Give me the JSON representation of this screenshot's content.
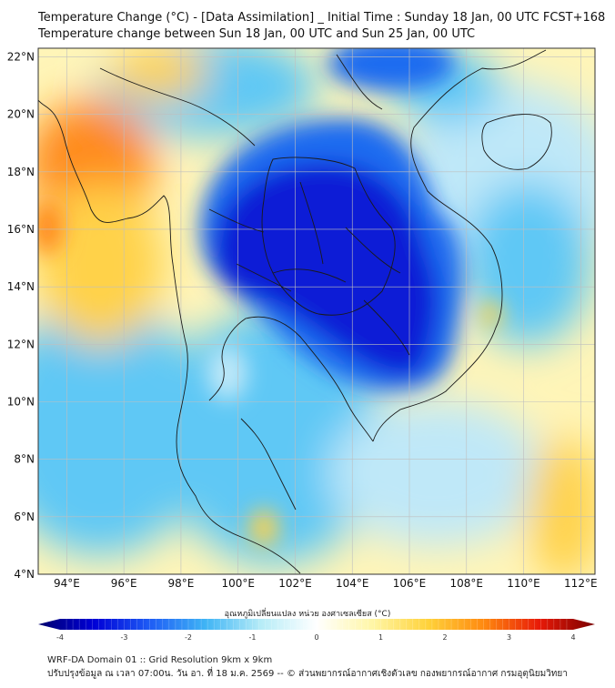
{
  "header": {
    "title_line1": "Temperature Change (°C) - [Data Assimilation] _ Initial Time : Sunday 18 Jan, 00 UTC FCST+168",
    "title_line2": "Temperature change between Sun 18 Jan, 00 UTC and Sun 25 Jan, 00 UTC"
  },
  "map": {
    "lat_labels": [
      "22°N",
      "20°N",
      "18°N",
      "16°N",
      "14°N",
      "12°N",
      "10°N",
      "8°N",
      "6°N",
      "4°N"
    ],
    "lon_labels": [
      "94°E",
      "96°E",
      "98°E",
      "100°E",
      "102°E",
      "104°E",
      "106°E",
      "108°E",
      "110°E",
      "112°E"
    ],
    "lat_range": [
      4,
      22.3
    ],
    "lon_range": [
      93,
      112.5
    ],
    "colors": {
      "background_warm": "#fff5b8",
      "strong_cold": "#0a1fd6",
      "cold": "#1e6cf0",
      "cool": "#5fc8f5",
      "mild_cool": "#bfe8f8",
      "warm": "#ffd24a",
      "hot": "#ff8a1a",
      "coastline": "#1a1a1a",
      "grid": "#bfbfbf"
    }
  },
  "colorbar": {
    "title": "อุณหภูมิเปลี่ยนแปลง หน่วย องศาเซลเซียส (°C)",
    "ticks": [
      "-4",
      "-3",
      "-2",
      "-1",
      "0",
      "1",
      "2",
      "3",
      "4"
    ],
    "stops": [
      "#00006e",
      "#0000d6",
      "#1e5cf5",
      "#3fb4f5",
      "#b6ecf7",
      "#ffffff",
      "#fff6a6",
      "#ffd23a",
      "#ff8a10",
      "#e81a08",
      "#7a0000"
    ]
  },
  "footer": {
    "line1": "WRF-DA Domain 01 :: Grid Resolution 9km x 9km",
    "line2": "ปรับปรุงข้อมูล ณ เวลา 07:00น. วัน อา. ที่ 18 ม.ค. 2569 -- © ส่วนพยากรณ์อากาศเชิงตัวเลข กองพยากรณ์อากาศ กรมอุตุนิยมวิทยา"
  }
}
